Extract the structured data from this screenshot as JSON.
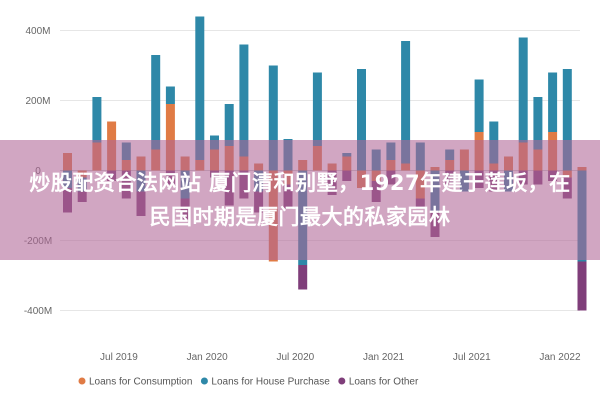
{
  "chart_data": {
    "type": "bar",
    "stacked": true,
    "y_unit_labels": [
      "400M",
      "200M",
      "0",
      "-200M",
      "-400M"
    ],
    "y_ticks": [
      400,
      200,
      0,
      -200,
      -400
    ],
    "ylim": [
      -450,
      470
    ],
    "x_tick_labels": [
      "Jul 2019",
      "Jan 2020",
      "Jul 2020",
      "Jan 2021",
      "Jul 2021",
      "Jan 2022"
    ],
    "x_tick_index": [
      3.5,
      9.5,
      15.5,
      21.5,
      27.5,
      33.5
    ],
    "grid": true,
    "legend_position": "bottom-left",
    "series": [
      {
        "name": "Loans for Consumption",
        "color": "#e07b45",
        "values": [
          50,
          -20,
          80,
          140,
          30,
          40,
          60,
          190,
          40,
          30,
          60,
          70,
          40,
          20,
          -260,
          -40,
          30,
          70,
          20,
          40,
          -50,
          -30,
          30,
          20,
          -80,
          10,
          30,
          60,
          110,
          20,
          40,
          80,
          60,
          110,
          -20,
          10
        ]
      },
      {
        "name": "Loans for House Purchase",
        "color": "#2e88a8",
        "values": [
          -50,
          -40,
          130,
          0,
          50,
          -60,
          270,
          50,
          -80,
          410,
          40,
          120,
          320,
          -60,
          300,
          90,
          -270,
          210,
          0,
          10,
          290,
          60,
          50,
          350,
          80,
          -120,
          30,
          -60,
          150,
          120,
          -60,
          300,
          150,
          170,
          290,
          -260
        ]
      },
      {
        "name": "Loans for Other",
        "color": "#7f3e7a",
        "values": [
          -70,
          -30,
          0,
          -30,
          -80,
          -70,
          0,
          -40,
          -60,
          0,
          -20,
          -100,
          -80,
          -60,
          0,
          -70,
          -70,
          0,
          -70,
          -30,
          0,
          -60,
          -40,
          0,
          -30,
          -70,
          -40,
          0,
          -50,
          -60,
          0,
          -40,
          -40,
          -30,
          -60,
          -140
        ]
      }
    ]
  },
  "overlay": {
    "caption": "炒股配资合法网站 厦门清和别墅，1927年建于莲坂，在民国时期是厦门最大的私家园林"
  }
}
